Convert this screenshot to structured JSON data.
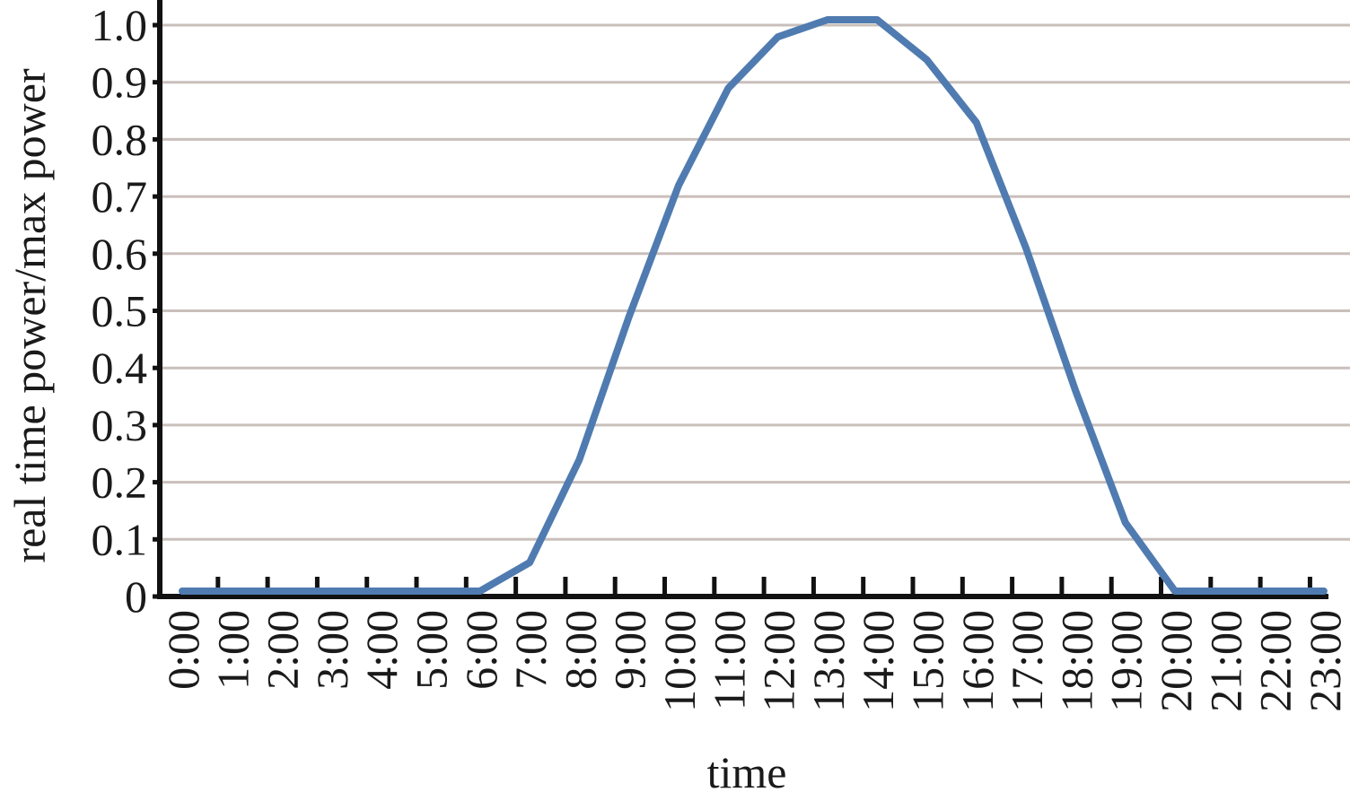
{
  "chart_data": {
    "type": "line",
    "title": "",
    "xlabel": "time",
    "ylabel": "real time power/max power",
    "ylim": [
      0,
      1.0
    ],
    "yticks": [
      "0",
      "0.1",
      "0.2",
      "0.3",
      "0.4",
      "0.5",
      "0.6",
      "0.7",
      "0.8",
      "0.9",
      "1.0"
    ],
    "grid": "horizontal",
    "categories": [
      "0:00",
      "1:00",
      "2:00",
      "3:00",
      "4:00",
      "5:00",
      "6:00",
      "7:00",
      "8:00",
      "9:00",
      "10:00",
      "11:00",
      "12:00",
      "13:00",
      "14:00",
      "15:00",
      "16:00",
      "17:00",
      "18:00",
      "19:00",
      "20:00",
      "21:00",
      "22:00",
      "23:00"
    ],
    "series": [
      {
        "values": [
          0,
          0,
          0,
          0,
          0,
          0,
          0,
          0.05,
          0.23,
          0.48,
          0.71,
          0.88,
          0.97,
          1.0,
          1.0,
          0.93,
          0.82,
          0.6,
          0.35,
          0.12,
          0,
          0,
          0,
          0
        ],
        "color": "#4f7bb0"
      }
    ],
    "colors": {
      "line": "#4f7bb0",
      "grid": "#c9bfbb",
      "axis": "#111111"
    }
  }
}
